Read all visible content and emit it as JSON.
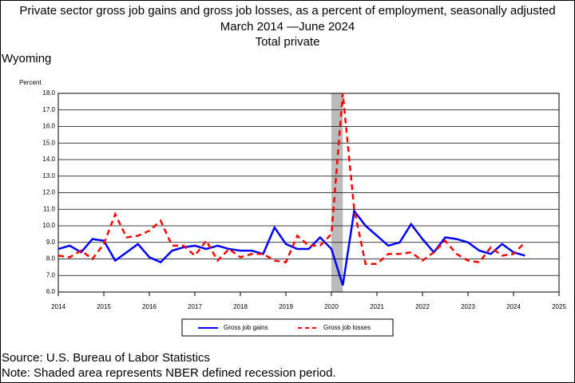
{
  "chart_data": {
    "type": "line",
    "title": "Private sector gross job gains and gross job losses, as a percent of employment, seasonally adjusted",
    "subtitle": "March 2014 —June 2024",
    "subtitle2": "Total private",
    "region": "Wyoming",
    "y_label": "Percent",
    "x": [
      2014,
      2014.25,
      2014.5,
      2014.75,
      2015,
      2015.25,
      2015.5,
      2015.75,
      2016,
      2016.25,
      2016.5,
      2016.75,
      2017,
      2017.25,
      2017.5,
      2017.75,
      2018,
      2018.25,
      2018.5,
      2018.75,
      2019,
      2019.25,
      2019.5,
      2019.75,
      2020,
      2020.25,
      2020.5,
      2020.75,
      2021,
      2021.25,
      2021.5,
      2021.75,
      2022,
      2022.25,
      2022.5,
      2022.75,
      2023,
      2023.25,
      2023.5,
      2023.75,
      2024,
      2024.25
    ],
    "series": [
      {
        "name": "Gross job gains",
        "color": "#0000ff",
        "dash": false,
        "values": [
          8.6,
          8.8,
          8.4,
          9.2,
          9.1,
          7.9,
          8.4,
          8.9,
          8.1,
          7.8,
          8.5,
          8.7,
          8.8,
          8.6,
          8.8,
          8.6,
          8.5,
          8.5,
          8.3,
          9.9,
          8.9,
          8.6,
          8.6,
          9.3,
          8.6,
          6.4,
          10.9,
          10.0,
          9.4,
          8.8,
          9.0,
          10.1,
          9.2,
          8.4,
          9.3,
          9.2,
          9.0,
          8.5,
          8.3,
          8.9,
          8.4,
          8.2
        ]
      },
      {
        "name": "Gross job losses",
        "color": "#ff0000",
        "dash": true,
        "values": [
          8.2,
          8.1,
          8.5,
          8.0,
          8.9,
          10.7,
          9.3,
          9.4,
          9.7,
          10.3,
          8.8,
          8.8,
          8.2,
          9.1,
          7.9,
          8.6,
          8.1,
          8.3,
          8.3,
          7.9,
          7.8,
          9.4,
          8.8,
          8.8,
          9.5,
          18.0,
          11.0,
          7.7,
          7.7,
          8.3,
          8.3,
          8.4,
          7.9,
          8.4,
          9.1,
          8.3,
          7.9,
          7.8,
          8.7,
          8.2,
          8.3,
          9.0
        ]
      }
    ],
    "recession": [
      2020,
      2020.25
    ],
    "xlim": [
      2014,
      2025
    ],
    "xticks": [
      2014,
      2015,
      2016,
      2017,
      2018,
      2019,
      2020,
      2021,
      2022,
      2023,
      2024,
      2025
    ],
    "ylim": [
      6,
      18
    ],
    "yticks": [
      {
        "value": 6,
        "label": "6.0"
      },
      {
        "value": 7,
        "label": "7.0"
      },
      {
        "value": 8,
        "label": "8.0"
      },
      {
        "value": 9,
        "label": "9.0"
      },
      {
        "value": 10,
        "label": "10.0"
      },
      {
        "value": 11,
        "label": "11.0"
      },
      {
        "value": 12,
        "label": "12.0"
      },
      {
        "value": 13,
        "label": "13.0"
      },
      {
        "value": 14,
        "label": "14.0"
      },
      {
        "value": 15,
        "label": "15.0"
      },
      {
        "value": 16,
        "label": "16.0"
      },
      {
        "value": 17,
        "label": "17.0"
      },
      {
        "value": 18,
        "label": "18.0"
      }
    ],
    "grid": true,
    "source": "Source: U.S. Bureau of Labor Statistics",
    "note": "Note: Shaded area represents NBER defined recession period."
  }
}
